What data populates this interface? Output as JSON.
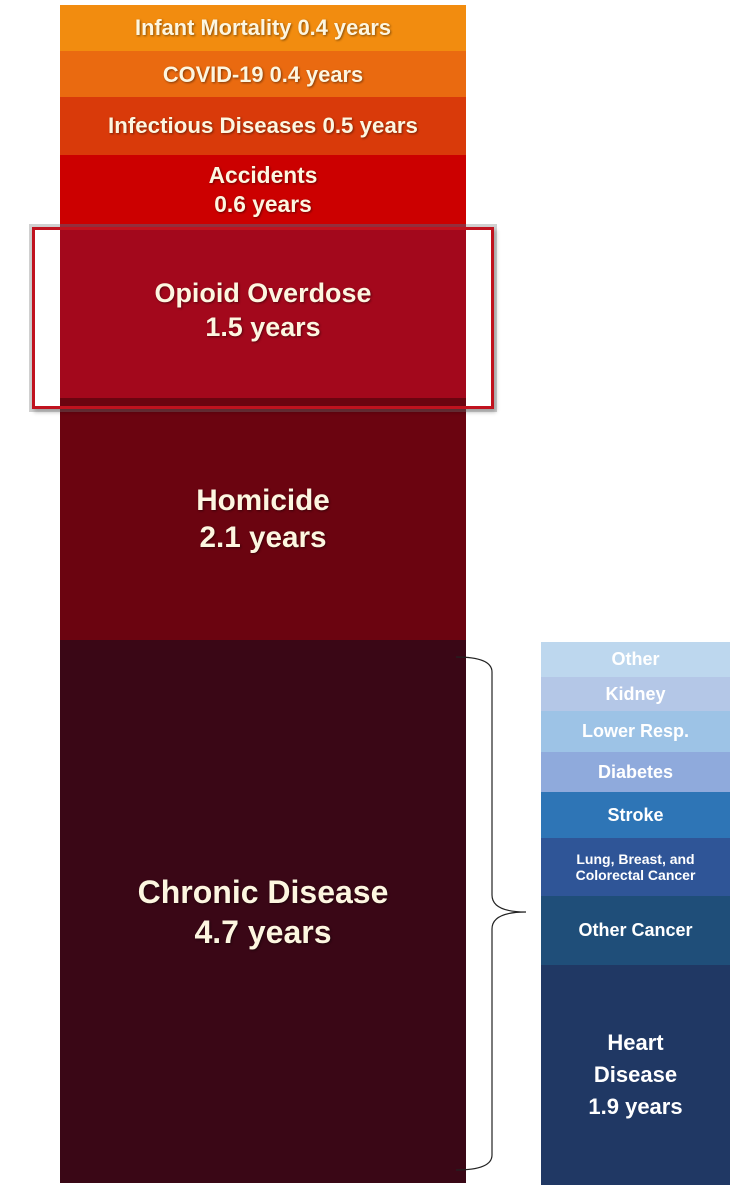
{
  "chart_data": [
    {
      "type": "stacked_bar",
      "segments": [
        {
          "name": "Infant Mortality",
          "color": "#f28c0f",
          "values": [
            0.4
          ],
          "value_labels": [
            "0.4 years"
          ]
        },
        {
          "name": "COVID-19",
          "color": "#ea6a10",
          "values": [
            0.4
          ],
          "value_labels": [
            "0.4 years"
          ]
        },
        {
          "name": "Infectious Diseases",
          "color": "#d93a0a",
          "values": [
            0.5
          ],
          "value_labels": [
            "0.5 years"
          ]
        },
        {
          "name": "Accidents",
          "color": "#cc0000",
          "values": [
            0.6
          ],
          "value_labels": [
            "0.6 years"
          ]
        },
        {
          "name": "Opioid Overdose",
          "color": "#a3081c",
          "values": [
            1.5
          ],
          "value_labels": [
            "1.5 years"
          ]
        },
        {
          "name": "Homicide",
          "color": "#6b0410",
          "values": [
            2.1
          ],
          "value_labels": [
            "2.1 years"
          ]
        },
        {
          "name": "Chronic Disease",
          "color": "#3a0716",
          "values": [
            4.7
          ],
          "value_labels": [
            "4.7 years"
          ]
        }
      ]
    },
    {
      "type": "stacked_bar",
      "segments": [
        {
          "name": "Other",
          "color": "#bdd7ee",
          "values": [
            0.3
          ]
        },
        {
          "name": "Kidney",
          "color": "#b4c7e7",
          "values": [
            0.3
          ]
        },
        {
          "name": "Lower Resp.",
          "color": "#9dc3e6",
          "values": [
            0.35
          ]
        },
        {
          "name": "Diabetes",
          "color": "#8faadc",
          "values": [
            0.35
          ]
        },
        {
          "name": "Stroke",
          "color": "#2e75b6",
          "values": [
            0.4
          ]
        },
        {
          "name": "Lung, Breast, and Colorectal Cancer",
          "color": "#2f5597",
          "values": [
            0.5
          ]
        },
        {
          "name": "Other Cancer",
          "color": "#1f4e79",
          "values": [
            0.6
          ]
        },
        {
          "name": "Heart Disease",
          "color": "#203864",
          "values": [
            1.9
          ],
          "value_labels": [
            "1.9 years"
          ]
        }
      ]
    }
  ]
}
